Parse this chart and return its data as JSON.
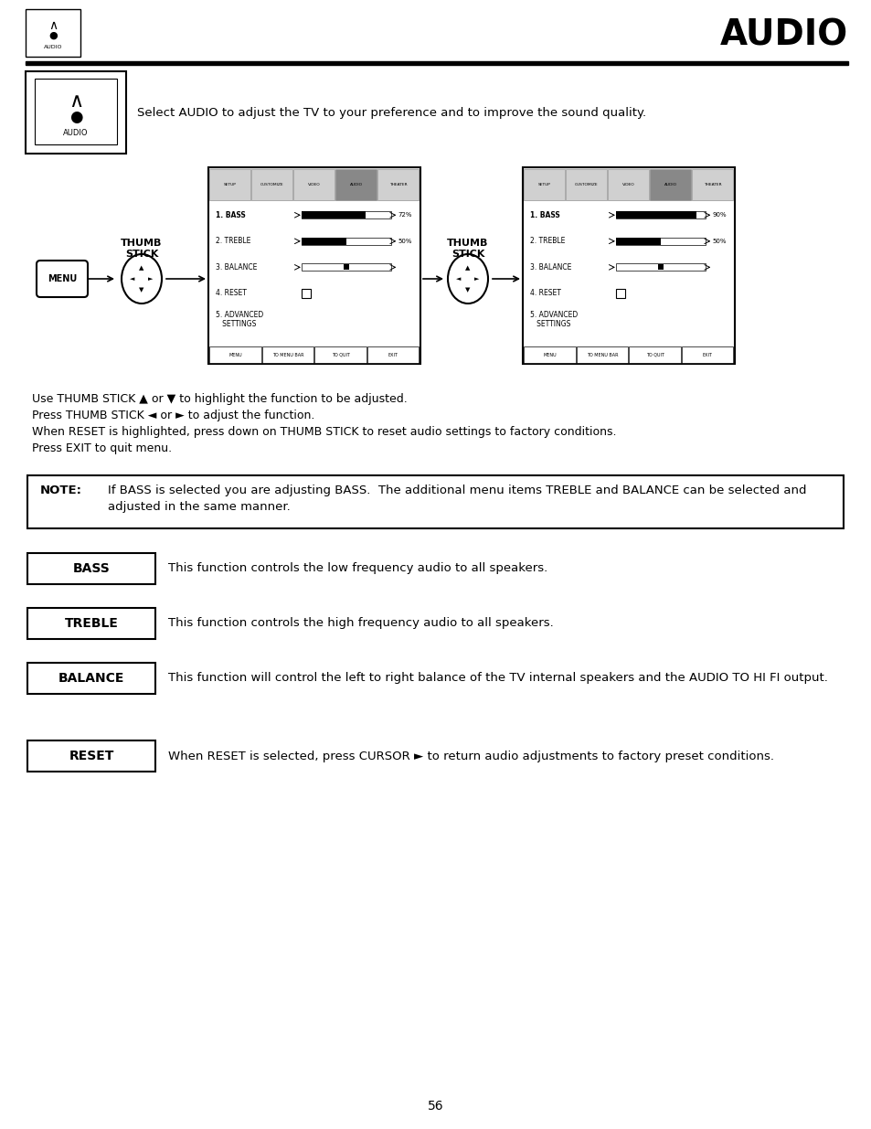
{
  "title": "AUDIO",
  "header_text": "Select AUDIO to adjust the TV to your preference and to improve the sound quality.",
  "body_lines": [
    "Use THUMB STICK ▲ or ▼ to highlight the function to be adjusted.",
    "Press THUMB STICK ◄ or ► to adjust the function.",
    "When RESET is highlighted, press down on THUMB STICK to reset audio settings to factory conditions.",
    "Press EXIT to quit menu."
  ],
  "note_label": "NOTE:",
  "note_text": "If BASS is selected you are adjusting BASS.  The additional menu items TREBLE and BALANCE can be selected and\nadjusted in the same manner.",
  "items": [
    {
      "label": "BASS",
      "desc": "This function controls the low frequency audio to all speakers."
    },
    {
      "label": "TREBLE",
      "desc": "This function controls the high frequency audio to all speakers."
    },
    {
      "label": "BALANCE",
      "desc": "This function will control the left to right balance of the TV internal speakers and the AUDIO TO HI FI output."
    },
    {
      "label": "RESET",
      "desc": "When RESET is selected, press CURSOR ► to return audio adjustments to factory preset conditions."
    }
  ],
  "page_number": "56",
  "bg_color": "#ffffff",
  "text_color": "#000000",
  "menu_screen1": {
    "bass_bar": 0.72,
    "bass_label": "72%",
    "treble_bar": 0.5,
    "treble_label": "50%",
    "balance_center": true
  },
  "menu_screen2": {
    "bass_bar": 0.9,
    "bass_label": "90%",
    "treble_bar": 0.5,
    "treble_label": "50%",
    "balance_center": true
  }
}
